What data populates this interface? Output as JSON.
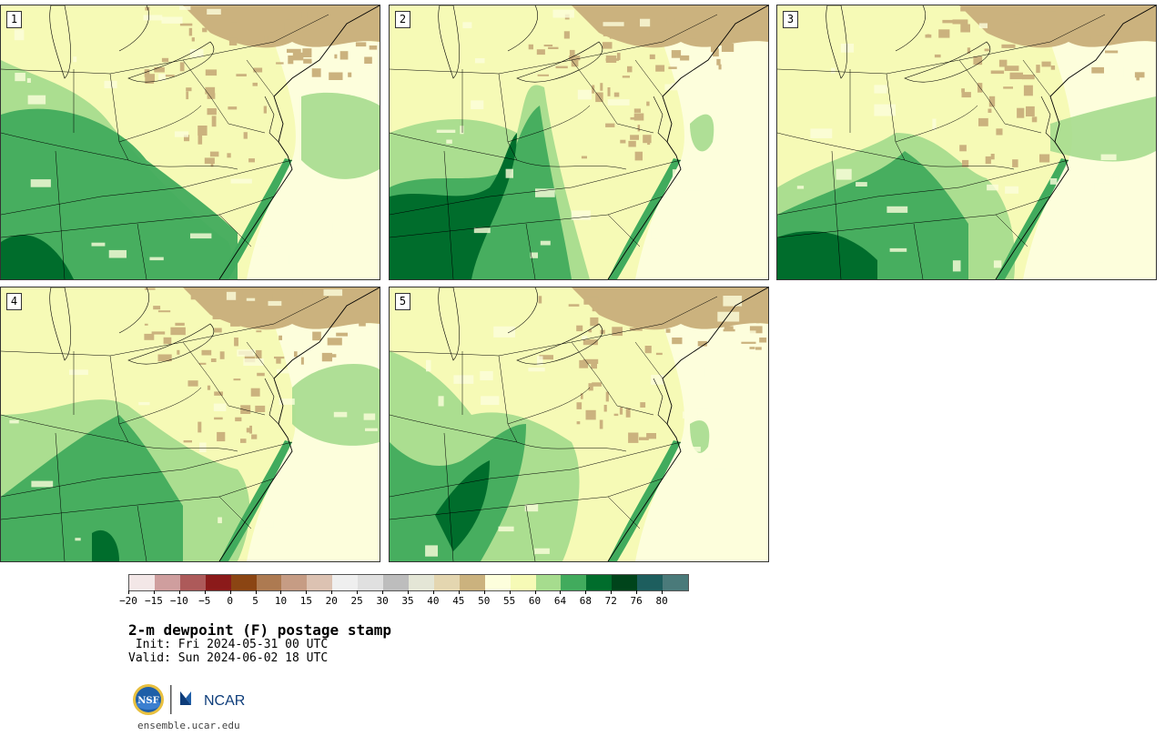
{
  "panels": [
    {
      "label": "1"
    },
    {
      "label": "2"
    },
    {
      "label": "3"
    },
    {
      "label": "4"
    },
    {
      "label": "5"
    }
  ],
  "colorbar": {
    "colors": [
      "#f3e7e7",
      "#cf9e9e",
      "#ad5a5a",
      "#8b1a1a",
      "#8b4513",
      "#ad7a51",
      "#c69c84",
      "#dcc2b2",
      "#efefef",
      "#e0e0e0",
      "#bdbdbd",
      "#e4e6d6",
      "#e4d6b0",
      "#cbb27e",
      "#fdfedc",
      "#f6fab6",
      "#a6dc8e",
      "#41ab5d",
      "#006d2c",
      "#00441b",
      "#1d5e5e",
      "#4a7a7a"
    ],
    "ticks": [
      "−20",
      "−15",
      "−10",
      "−5",
      "0",
      "5",
      "10",
      "15",
      "20",
      "25",
      "30",
      "35",
      "40",
      "45",
      "50",
      "55",
      "60",
      "64",
      "68",
      "72",
      "76",
      "80"
    ]
  },
  "title": "2-m dewpoint (F) postage stamp",
  "init": " Init: Fri 2024-05-31 00 UTC",
  "valid": "Valid: Sun 2024-06-02 18 UTC",
  "logos": {
    "nsf": "NSF",
    "ncar": "NCAR"
  },
  "site": "ensemble.ucar.edu",
  "palette": {
    "tan": "#cbb27e",
    "lightyellow": "#fdfedc",
    "yellow": "#f6fab6",
    "lightgreen": "#a6dc8e",
    "green": "#41ab5d",
    "darkgreen": "#006d2c",
    "ocean": "#f6fab6"
  }
}
